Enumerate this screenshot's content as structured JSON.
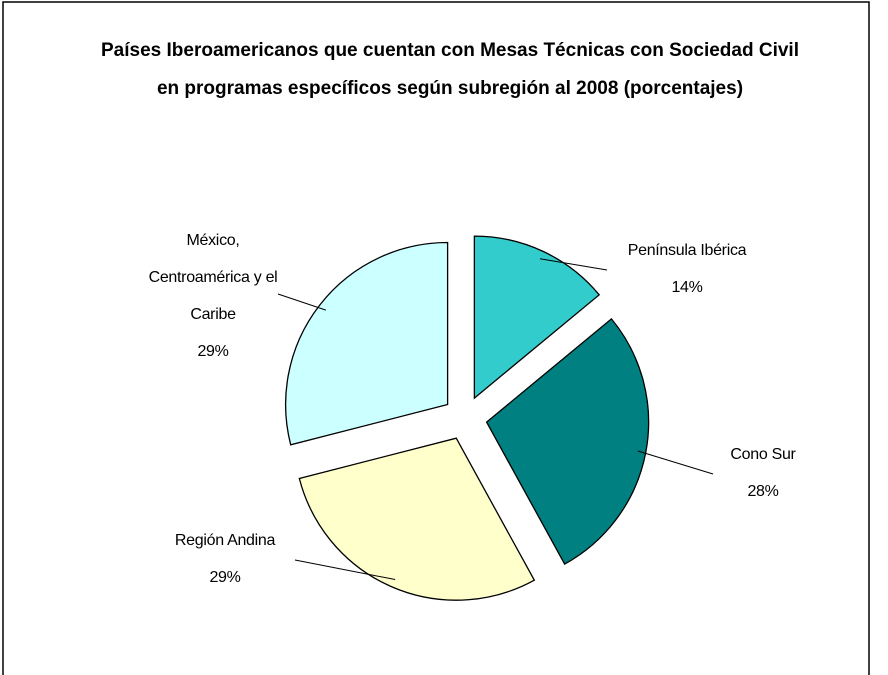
{
  "chart_data": {
    "type": "pie",
    "title": "Países Iberoamericanos que cuentan con Mesas Técnicas con Sociedad Civil en programas específicos según subregión al 2008 (porcentajes)",
    "categories": [
      "Península Ibérica",
      "Cono Sur",
      "Región Andina",
      "México, Centroamérica y el Caribe"
    ],
    "values": [
      14,
      28,
      29,
      29
    ],
    "value_labels": [
      "14%",
      "28%",
      "29%",
      "29%"
    ],
    "colors": [
      "#33cccc",
      "#008080",
      "#ffffcc",
      "#ccffff"
    ]
  }
}
